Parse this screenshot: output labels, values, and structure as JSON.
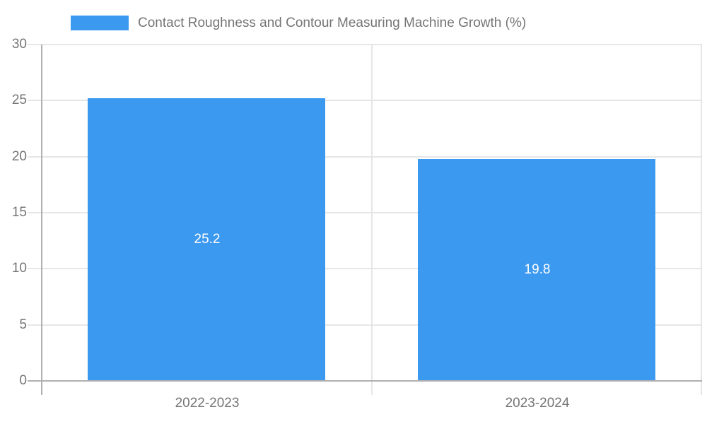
{
  "chart_data": {
    "type": "bar",
    "title": "Contact Roughness and Contour Measuring Machine Growth (%)",
    "legend": {
      "position": "top",
      "label": "Contact Roughness and Contour Measuring Machine Growth (%)"
    },
    "categories": [
      "2022-2023",
      "2023-2024"
    ],
    "values": [
      25.2,
      19.8
    ],
    "value_labels": [
      "25.2",
      "19.8"
    ],
    "xlabel": "",
    "ylabel": "",
    "ylim": [
      0,
      30
    ],
    "yticks": [
      0,
      5,
      10,
      15,
      20,
      25,
      30
    ],
    "ytick_labels": [
      "0",
      "5",
      "10",
      "15",
      "20",
      "25",
      "30"
    ],
    "grid": true,
    "colors": {
      "bar": "#3C99F0",
      "gridline": "#e6e6e6",
      "axis": "#b0b0b0",
      "tick_label": "#757575",
      "value_label": "#ffffff",
      "background": "#ffffff"
    }
  }
}
